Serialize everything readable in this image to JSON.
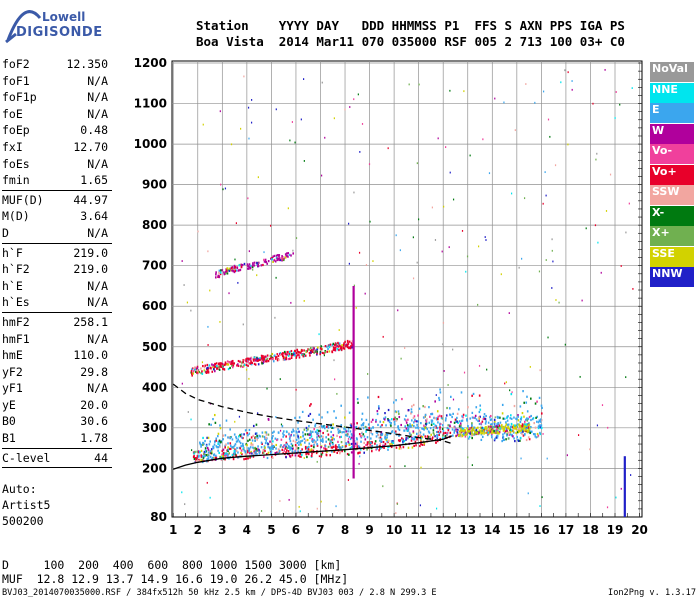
{
  "logo": {
    "line1": "Lowell",
    "line2": "DIGISONDE"
  },
  "header": {
    "line1": "Station    YYYY DAY   DDD HHMMSS P1  FFS S AXN PPS IGA PS",
    "line2": "Boa Vista  2014 Mar11 070 035000 RSF 005 2 713 100 03+ C0"
  },
  "params": [
    {
      "name": "foF2",
      "value": "12.350"
    },
    {
      "name": "foF1",
      "value": "N/A"
    },
    {
      "name": "foF1p",
      "value": "N/A"
    },
    {
      "name": "foE",
      "value": "N/A"
    },
    {
      "name": "foEp",
      "value": "0.48"
    },
    {
      "name": "fxI",
      "value": "12.70"
    },
    {
      "name": "foEs",
      "value": "N/A"
    },
    {
      "name": "fmin",
      "value": "1.65",
      "sep_after": true
    },
    {
      "name": "MUF(D)",
      "value": "44.97"
    },
    {
      "name": "M(D)",
      "value": "3.64"
    },
    {
      "name": "D",
      "value": "N/A",
      "sep_after": true
    },
    {
      "name": "h`F",
      "value": "219.0"
    },
    {
      "name": "h`F2",
      "value": "219.0"
    },
    {
      "name": "h`E",
      "value": "N/A"
    },
    {
      "name": "h`Es",
      "value": "N/A",
      "sep_after": true
    },
    {
      "name": "hmF2",
      "value": "258.1"
    },
    {
      "name": "hmF1",
      "value": "N/A"
    },
    {
      "name": "hmE",
      "value": "110.0"
    },
    {
      "name": "yF2",
      "value": "29.8"
    },
    {
      "name": "yF1",
      "value": "N/A"
    },
    {
      "name": "yE",
      "value": "20.0"
    },
    {
      "name": "B0",
      "value": "30.6"
    },
    {
      "name": "B1",
      "value": "1.78",
      "sep_after": true
    },
    {
      "name": "C-level",
      "value": "44",
      "sep_after": true
    }
  ],
  "auto": {
    "line1": "Auto:",
    "line2": "Artist5",
    "line3": "500200"
  },
  "legend": [
    {
      "label": "NoVal",
      "color": "#999999"
    },
    {
      "label": "NNE",
      "color": "#00e5ee"
    },
    {
      "label": "E",
      "color": "#3ba6ee"
    },
    {
      "label": "W",
      "color": "#b0009c"
    },
    {
      "label": "Vo-",
      "color": "#f0409c"
    },
    {
      "label": "Vo+",
      "color": "#e8002a"
    },
    {
      "label": "SSW",
      "color": "#f2a6a0"
    },
    {
      "label": "X-",
      "color": "#007a10"
    },
    {
      "label": "X+",
      "color": "#70b050"
    },
    {
      "label": "SSE",
      "color": "#d2d200"
    },
    {
      "label": "NNW",
      "color": "#2020c8"
    }
  ],
  "footer": {
    "d_line": "D     100  200  400  600  800 1000 1500 3000 [km]",
    "muf_line": "MUF  12.8 12.9 13.7 14.9 16.6 19.0 26.2 45.0 [MHz]"
  },
  "info": "BVJ03_2014070035000.RSF / 384fx512h 50 kHz 2.5 km / DPS-4D BVJ03 003 / 2.8 N 299.3 E",
  "version": "Ion2Png v. 1.3.17",
  "chart_data": {
    "type": "scatter",
    "x_ticks": [
      1,
      2,
      3,
      4,
      5,
      6,
      7,
      8,
      9,
      10,
      11,
      12,
      13,
      14,
      15,
      16,
      17,
      18,
      19,
      20
    ],
    "y_ticks": [
      80,
      200,
      300,
      400,
      500,
      600,
      700,
      800,
      900,
      1000,
      1100,
      1200
    ],
    "xlim": [
      0.95,
      20.1
    ],
    "ylim": [
      80,
      1205
    ],
    "grid": true,
    "legend_position": "right",
    "traces": [
      {
        "name": "F2 O-mode lower trace",
        "color": "#e8002a",
        "points": [
          [
            1.8,
            230
          ],
          [
            3,
            237
          ],
          [
            5,
            242
          ],
          [
            7,
            245
          ],
          [
            8.3,
            250
          ],
          [
            9.5,
            258
          ],
          [
            10.5,
            265
          ],
          [
            11.5,
            275
          ],
          [
            12.3,
            290
          ]
        ]
      },
      {
        "name": "F2 spread main band",
        "color": "#3ba6ee",
        "points": [
          [
            2,
            245
          ],
          [
            3,
            255
          ],
          [
            4,
            260
          ],
          [
            5,
            265
          ],
          [
            6,
            270
          ],
          [
            7,
            280
          ],
          [
            8,
            285
          ],
          [
            9,
            295
          ],
          [
            10,
            300
          ],
          [
            11,
            305
          ],
          [
            12,
            310
          ],
          [
            13,
            305
          ],
          [
            14,
            300
          ],
          [
            15,
            300
          ],
          [
            16,
            305
          ]
        ]
      },
      {
        "name": "second hop",
        "color": "#e8002a",
        "points": [
          [
            1.7,
            440
          ],
          [
            2.5,
            450
          ],
          [
            3.5,
            460
          ],
          [
            4.5,
            470
          ],
          [
            5.5,
            480
          ],
          [
            6.5,
            490
          ],
          [
            7.5,
            500
          ],
          [
            8.3,
            510
          ]
        ]
      },
      {
        "name": "third hop",
        "color": "#b0009c",
        "points": [
          [
            2.7,
            680
          ],
          [
            3.5,
            695
          ],
          [
            4.5,
            710
          ],
          [
            5.5,
            725
          ],
          [
            5.9,
            735
          ]
        ]
      },
      {
        "name": "extraordinary band",
        "color": "#d2d200",
        "points": [
          [
            12.5,
            290
          ],
          [
            13.5,
            295
          ],
          [
            14.5,
            300
          ],
          [
            15.5,
            302
          ]
        ]
      }
    ],
    "curves": [
      {
        "name": "model O-trace",
        "style": "solid",
        "color": "#000000",
        "points": [
          [
            1,
            198
          ],
          [
            1.5,
            208
          ],
          [
            2,
            215
          ],
          [
            3,
            225
          ],
          [
            4,
            230
          ],
          [
            5,
            234
          ],
          [
            6,
            238
          ],
          [
            7,
            242
          ],
          [
            8,
            246
          ],
          [
            9,
            251
          ],
          [
            10,
            256
          ],
          [
            11,
            263
          ],
          [
            12,
            272
          ],
          [
            12.35,
            280
          ]
        ]
      },
      {
        "name": "profile",
        "style": "dashed",
        "color": "#000000",
        "points": [
          [
            1,
            408
          ],
          [
            1.5,
            385
          ],
          [
            2,
            370
          ],
          [
            3,
            352
          ],
          [
            4,
            338
          ],
          [
            5,
            327
          ],
          [
            6,
            318
          ],
          [
            7,
            310
          ],
          [
            8,
            302
          ],
          [
            9,
            294
          ],
          [
            10,
            285
          ],
          [
            11,
            276
          ],
          [
            12,
            268
          ],
          [
            12.3,
            262
          ]
        ]
      }
    ],
    "vertical_lines": [
      {
        "x": 8.35,
        "y": [
          175,
          650
        ],
        "color": "#b0009c"
      },
      {
        "x": 19.4,
        "y": [
          80,
          230
        ],
        "color": "#2020c8"
      }
    ]
  }
}
